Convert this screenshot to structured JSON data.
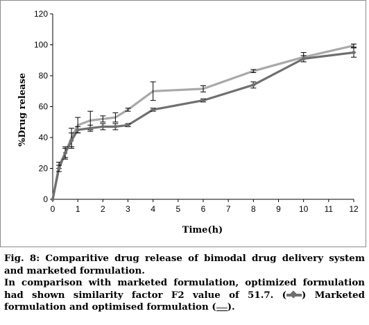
{
  "chart_data": {
    "type": "line",
    "xlabel": "Time(h)",
    "ylabel": "%Drug release",
    "x_ticks": [
      "0",
      "1",
      "2",
      "3",
      "4",
      "5",
      "6",
      "7",
      "8",
      "9",
      "10",
      "11",
      "12"
    ],
    "y_ticks": [
      "0",
      "20",
      "40",
      "60",
      "80",
      "100",
      "120"
    ],
    "xlim": [
      0,
      12
    ],
    "ylim": [
      0,
      120
    ],
    "grid": false,
    "series": [
      {
        "name": "Marketed formulation",
        "color": "#6f6f6f",
        "marker": "diamond",
        "x": [
          0,
          0.25,
          0.5,
          0.75,
          1,
          1.5,
          2,
          2.5,
          3,
          4,
          6,
          8,
          10,
          12
        ],
        "y": [
          0,
          20,
          30,
          38,
          45,
          46,
          47,
          47,
          48,
          58,
          64,
          74,
          91,
          95
        ],
        "err": [
          0,
          2,
          4,
          5,
          2,
          2,
          2,
          2,
          1,
          1,
          1,
          2,
          2,
          3
        ]
      },
      {
        "name": "Optimised formulation",
        "color": "#a9a9a9",
        "marker": "none",
        "x": [
          0,
          0.25,
          0.5,
          0.75,
          1,
          1.5,
          2,
          2.5,
          3,
          4,
          6,
          8,
          10,
          12
        ],
        "y": [
          0,
          22,
          30,
          40,
          48,
          51,
          52,
          53,
          58,
          70,
          71.5,
          83,
          92,
          99.5
        ],
        "err": [
          0,
          2,
          3,
          6,
          5,
          6,
          2,
          3,
          1,
          6,
          2,
          1,
          3,
          1
        ]
      }
    ]
  },
  "caption": {
    "line1": "Fig. 8: Comparitive drug release of bimodal drug delivery system and marketed formulation.",
    "line2_a": "In comparison with marketed formulation, optimized formulation had shown similarity factor F2 value of 51.7. (",
    "line2_b": ") Marketed formulation and optimised formulation (",
    "line2_c": ")."
  }
}
